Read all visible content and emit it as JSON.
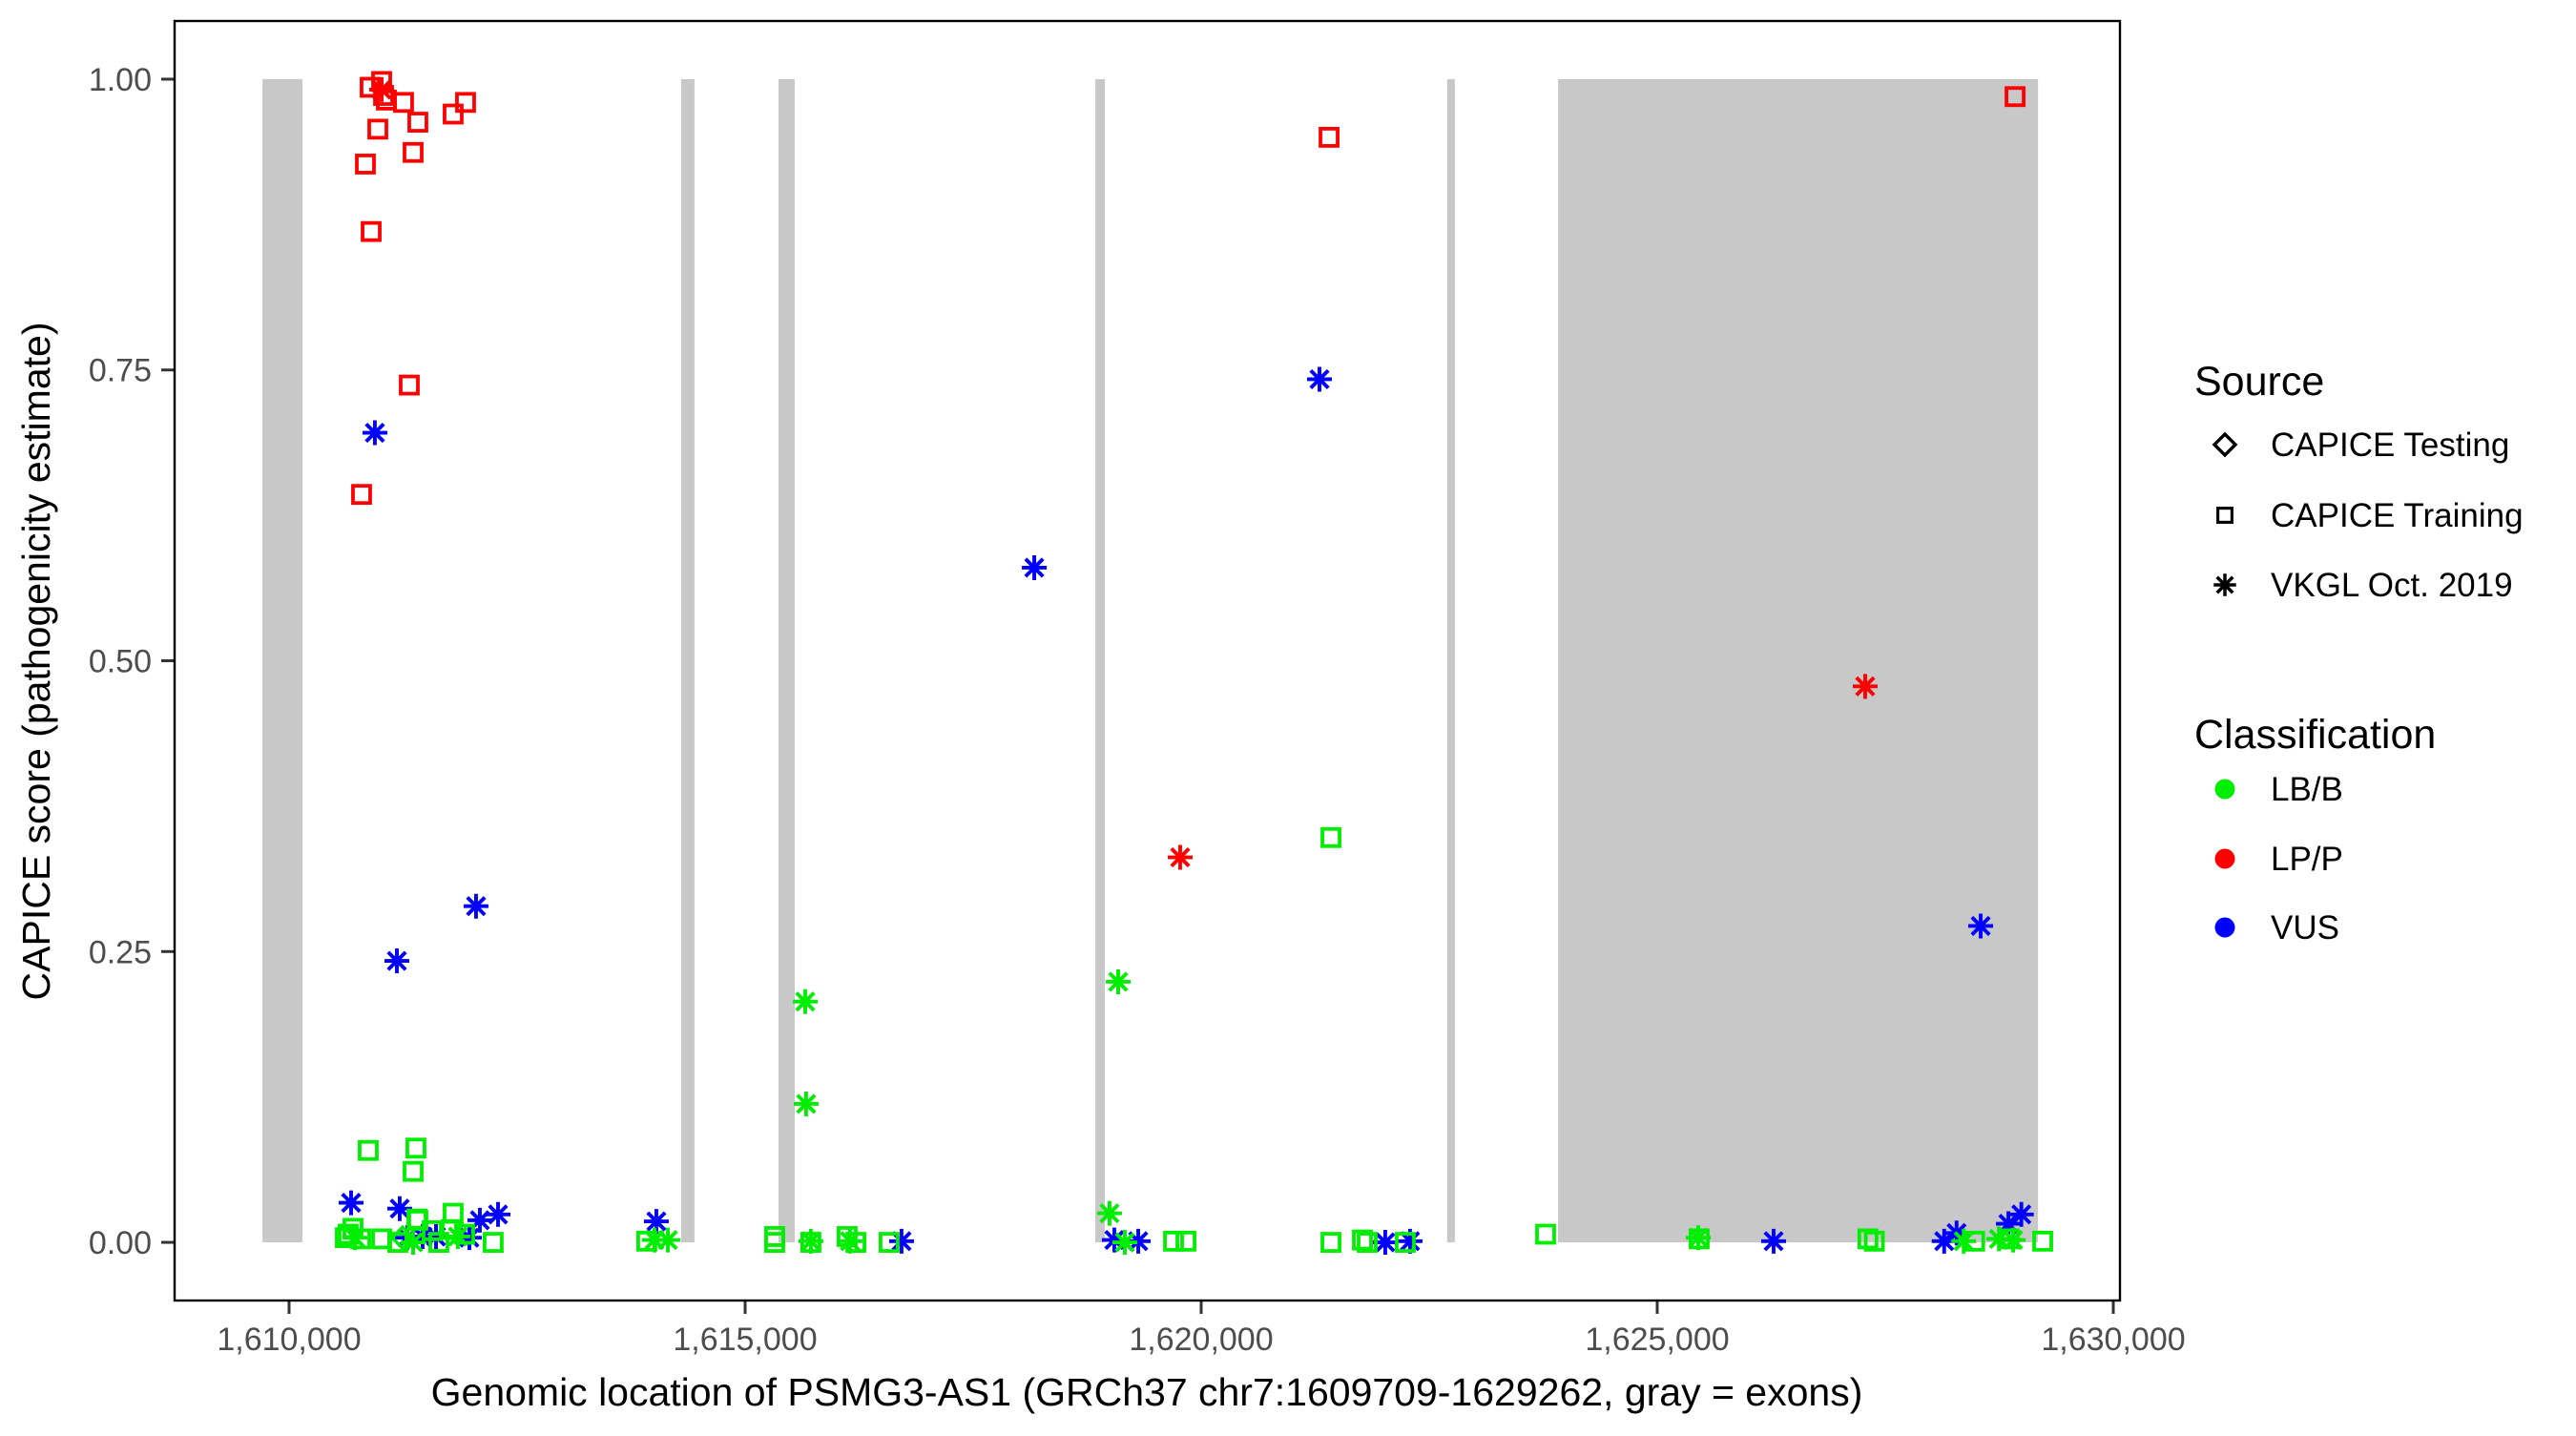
{
  "figure": {
    "background": "#ffffff"
  },
  "legend": {
    "source": {
      "title": "Source",
      "items": [
        {
          "label": "CAPICE Testing",
          "shape": "diamond"
        },
        {
          "label": "CAPICE Training",
          "shape": "square"
        },
        {
          "label": "VKGL Oct. 2019",
          "shape": "asterisk"
        }
      ]
    },
    "classification": {
      "title": "Classification",
      "items": [
        {
          "label": "LB/B",
          "color": "#00ee00"
        },
        {
          "label": "LP/P",
          "color": "#ff0000"
        },
        {
          "label": "VUS",
          "color": "#0000ff"
        }
      ]
    }
  },
  "chart_data": {
    "type": "scatter",
    "title": "",
    "xlabel": "Genomic location of PSMG3-AS1 (GRCh37 chr7:1609709-1629262, gray = exons)",
    "ylabel": "CAPICE score (pathogenicity estimate)",
    "xlim": [
      1608745,
      1630073
    ],
    "ylim": [
      -0.05,
      1.05
    ],
    "grid": false,
    "legend_position": "right",
    "x_ticks": [
      {
        "value": 1610000,
        "label": "1,610,000"
      },
      {
        "value": 1615000,
        "label": "1,615,000"
      },
      {
        "value": 1620000,
        "label": "1,620,000"
      },
      {
        "value": 1625000,
        "label": "1,625,000"
      },
      {
        "value": 1630000,
        "label": "1,630,000"
      }
    ],
    "y_ticks": [
      {
        "value": 0.0,
        "label": "0.00"
      },
      {
        "value": 0.25,
        "label": "0.25"
      },
      {
        "value": 0.5,
        "label": "0.50"
      },
      {
        "value": 0.75,
        "label": "0.75"
      },
      {
        "value": 1.0,
        "label": "1.00"
      }
    ],
    "exon_color": "#c8c8c8",
    "exons": [
      [
        1609709,
        1610146
      ],
      [
        1614299,
        1614445
      ],
      [
        1615366,
        1615544
      ],
      [
        1618838,
        1618943
      ],
      [
        1622697,
        1622781
      ],
      [
        1623912,
        1629175
      ]
    ],
    "class_colors": {
      "LB/B": "#00ee00",
      "LP/P": "#ff0000",
      "VUS": "#0000ff"
    },
    "points": [
      {
        "x": 1610889,
        "y": 0.993,
        "shape": "square",
        "cls": "LP/P"
      },
      {
        "x": 1611015,
        "y": 0.998,
        "shape": "square",
        "cls": "LP/P"
      },
      {
        "x": 1611036,
        "y": 0.986,
        "shape": "square",
        "cls": "LP/P"
      },
      {
        "x": 1611067,
        "y": 0.982,
        "shape": "square",
        "cls": "LP/P"
      },
      {
        "x": 1610973,
        "y": 0.957,
        "shape": "square",
        "cls": "LP/P"
      },
      {
        "x": 1611255,
        "y": 0.98,
        "shape": "square",
        "cls": "LP/P"
      },
      {
        "x": 1611412,
        "y": 0.963,
        "shape": "square",
        "cls": "LP/P"
      },
      {
        "x": 1611360,
        "y": 0.937,
        "shape": "square",
        "cls": "LP/P"
      },
      {
        "x": 1610837,
        "y": 0.927,
        "shape": "square",
        "cls": "LP/P"
      },
      {
        "x": 1611799,
        "y": 0.97,
        "shape": "square",
        "cls": "LP/P"
      },
      {
        "x": 1611935,
        "y": 0.98,
        "shape": "square",
        "cls": "LP/P"
      },
      {
        "x": 1610900,
        "y": 0.869,
        "shape": "square",
        "cls": "LP/P"
      },
      {
        "x": 1611318,
        "y": 0.737,
        "shape": "square",
        "cls": "LP/P"
      },
      {
        "x": 1610795,
        "y": 0.643,
        "shape": "square",
        "cls": "LP/P"
      },
      {
        "x": 1621402,
        "y": 0.95,
        "shape": "square",
        "cls": "LP/P"
      },
      {
        "x": 1628923,
        "y": 0.985,
        "shape": "square",
        "cls": "LP/P"
      },
      {
        "x": 1611015,
        "y": 0.991,
        "shape": "asterisk",
        "cls": "LP/P"
      },
      {
        "x": 1619770,
        "y": 0.331,
        "shape": "asterisk",
        "cls": "LP/P"
      },
      {
        "x": 1627280,
        "y": 0.478,
        "shape": "asterisk",
        "cls": "LP/P"
      },
      {
        "x": 1610941,
        "y": 0.696,
        "shape": "asterisk",
        "cls": "VUS"
      },
      {
        "x": 1612050,
        "y": 0.289,
        "shape": "asterisk",
        "cls": "VUS"
      },
      {
        "x": 1611182,
        "y": 0.242,
        "shape": "asterisk",
        "cls": "VUS"
      },
      {
        "x": 1618170,
        "y": 0.58,
        "shape": "asterisk",
        "cls": "VUS"
      },
      {
        "x": 1621297,
        "y": 0.742,
        "shape": "asterisk",
        "cls": "VUS"
      },
      {
        "x": 1628546,
        "y": 0.272,
        "shape": "asterisk",
        "cls": "VUS"
      },
      {
        "x": 1610680,
        "y": 0.034,
        "shape": "asterisk",
        "cls": "VUS"
      },
      {
        "x": 1611213,
        "y": 0.029,
        "shape": "asterisk",
        "cls": "VUS"
      },
      {
        "x": 1611297,
        "y": 0.004,
        "shape": "asterisk",
        "cls": "VUS"
      },
      {
        "x": 1611464,
        "y": 0.005,
        "shape": "asterisk",
        "cls": "VUS"
      },
      {
        "x": 1611611,
        "y": 0.005,
        "shape": "asterisk",
        "cls": "VUS"
      },
      {
        "x": 1611977,
        "y": 0.004,
        "shape": "asterisk",
        "cls": "VUS"
      },
      {
        "x": 1612092,
        "y": 0.019,
        "shape": "asterisk",
        "cls": "VUS"
      },
      {
        "x": 1612291,
        "y": 0.024,
        "shape": "asterisk",
        "cls": "VUS"
      },
      {
        "x": 1614027,
        "y": 0.018,
        "shape": "asterisk",
        "cls": "VUS"
      },
      {
        "x": 1619048,
        "y": 0.002,
        "shape": "asterisk",
        "cls": "VUS"
      },
      {
        "x": 1619310,
        "y": 0.001,
        "shape": "asterisk",
        "cls": "VUS"
      },
      {
        "x": 1616715,
        "y": 0.001,
        "shape": "asterisk",
        "cls": "VUS"
      },
      {
        "x": 1622018,
        "y": 0.0,
        "shape": "asterisk",
        "cls": "VUS"
      },
      {
        "x": 1622290,
        "y": 0.001,
        "shape": "asterisk",
        "cls": "VUS"
      },
      {
        "x": 1626276,
        "y": 0.001,
        "shape": "asterisk",
        "cls": "VUS"
      },
      {
        "x": 1628146,
        "y": 0.001,
        "shape": "asterisk",
        "cls": "VUS"
      },
      {
        "x": 1628282,
        "y": 0.008,
        "shape": "asterisk",
        "cls": "VUS"
      },
      {
        "x": 1628992,
        "y": 0.024,
        "shape": "asterisk",
        "cls": "VUS"
      },
      {
        "x": 1628850,
        "y": 0.016,
        "shape": "asterisk",
        "cls": "VUS"
      },
      {
        "x": 1610868,
        "y": 0.079,
        "shape": "square",
        "cls": "LB/B"
      },
      {
        "x": 1611391,
        "y": 0.081,
        "shape": "square",
        "cls": "LB/B"
      },
      {
        "x": 1611360,
        "y": 0.061,
        "shape": "square",
        "cls": "LB/B"
      },
      {
        "x": 1611412,
        "y": 0.019,
        "shape": "square",
        "cls": "LB/B"
      },
      {
        "x": 1610617,
        "y": 0.004,
        "shape": "square",
        "cls": "LB/B"
      },
      {
        "x": 1610701,
        "y": 0.012,
        "shape": "square",
        "cls": "LB/B"
      },
      {
        "x": 1610785,
        "y": 0.003,
        "shape": "square",
        "cls": "LB/B"
      },
      {
        "x": 1611015,
        "y": 0.003,
        "shape": "square",
        "cls": "LB/B"
      },
      {
        "x": 1611192,
        "y": 0.0,
        "shape": "square",
        "cls": "LB/B"
      },
      {
        "x": 1611402,
        "y": 0.02,
        "shape": "square",
        "cls": "LB/B"
      },
      {
        "x": 1611569,
        "y": 0.01,
        "shape": "square",
        "cls": "LB/B"
      },
      {
        "x": 1611642,
        "y": 0.0,
        "shape": "square",
        "cls": "LB/B"
      },
      {
        "x": 1611799,
        "y": 0.025,
        "shape": "square",
        "cls": "LB/B"
      },
      {
        "x": 1611778,
        "y": 0.011,
        "shape": "square",
        "cls": "LB/B"
      },
      {
        "x": 1611925,
        "y": 0.007,
        "shape": "square",
        "cls": "LB/B"
      },
      {
        "x": 1612238,
        "y": 0.0,
        "shape": "square",
        "cls": "LB/B"
      },
      {
        "x": 1610648,
        "y": 0.007,
        "shape": "square",
        "cls": "LB/B"
      },
      {
        "x": 1613922,
        "y": 0.001,
        "shape": "square",
        "cls": "LB/B"
      },
      {
        "x": 1615324,
        "y": 0.005,
        "shape": "square",
        "cls": "LB/B"
      },
      {
        "x": 1615324,
        "y": 0.0,
        "shape": "square",
        "cls": "LB/B"
      },
      {
        "x": 1615721,
        "y": 0.0,
        "shape": "square",
        "cls": "LB/B"
      },
      {
        "x": 1616119,
        "y": 0.005,
        "shape": "square",
        "cls": "LB/B"
      },
      {
        "x": 1616214,
        "y": 0.0,
        "shape": "square",
        "cls": "LB/B"
      },
      {
        "x": 1616579,
        "y": 0.0,
        "shape": "square",
        "cls": "LB/B"
      },
      {
        "x": 1619697,
        "y": 0.001,
        "shape": "square",
        "cls": "LB/B"
      },
      {
        "x": 1619833,
        "y": 0.001,
        "shape": "square",
        "cls": "LB/B"
      },
      {
        "x": 1621423,
        "y": 0.348,
        "shape": "square",
        "cls": "LB/B"
      },
      {
        "x": 1621423,
        "y": 0.0,
        "shape": "square",
        "cls": "LB/B"
      },
      {
        "x": 1621768,
        "y": 0.002,
        "shape": "square",
        "cls": "LB/B"
      },
      {
        "x": 1621820,
        "y": 0.0,
        "shape": "square",
        "cls": "LB/B"
      },
      {
        "x": 1622238,
        "y": 0.0,
        "shape": "square",
        "cls": "LB/B"
      },
      {
        "x": 1623776,
        "y": 0.007,
        "shape": "square",
        "cls": "LB/B"
      },
      {
        "x": 1625460,
        "y": 0.003,
        "shape": "square",
        "cls": "LB/B"
      },
      {
        "x": 1627310,
        "y": 0.003,
        "shape": "square",
        "cls": "LB/B"
      },
      {
        "x": 1627380,
        "y": 0.001,
        "shape": "square",
        "cls": "LB/B"
      },
      {
        "x": 1628480,
        "y": 0.001,
        "shape": "square",
        "cls": "LB/B"
      },
      {
        "x": 1628857,
        "y": 0.003,
        "shape": "square",
        "cls": "LB/B"
      },
      {
        "x": 1629226,
        "y": 0.001,
        "shape": "square",
        "cls": "LB/B"
      },
      {
        "x": 1615659,
        "y": 0.207,
        "shape": "asterisk",
        "cls": "LB/B"
      },
      {
        "x": 1615669,
        "y": 0.119,
        "shape": "asterisk",
        "cls": "LB/B"
      },
      {
        "x": 1619090,
        "y": 0.224,
        "shape": "asterisk",
        "cls": "LB/B"
      },
      {
        "x": 1618995,
        "y": 0.025,
        "shape": "asterisk",
        "cls": "LB/B"
      },
      {
        "x": 1619163,
        "y": 0.0,
        "shape": "asterisk",
        "cls": "LB/B"
      },
      {
        "x": 1610722,
        "y": 0.004,
        "shape": "asterisk",
        "cls": "LB/B"
      },
      {
        "x": 1611360,
        "y": 0.0,
        "shape": "asterisk",
        "cls": "LB/B"
      },
      {
        "x": 1611851,
        "y": 0.005,
        "shape": "asterisk",
        "cls": "LB/B"
      },
      {
        "x": 1615721,
        "y": 0.001,
        "shape": "asterisk",
        "cls": "LB/B"
      },
      {
        "x": 1616150,
        "y": 0.001,
        "shape": "asterisk",
        "cls": "LB/B"
      },
      {
        "x": 1614006,
        "y": 0.002,
        "shape": "asterisk",
        "cls": "LB/B"
      },
      {
        "x": 1614153,
        "y": 0.002,
        "shape": "asterisk",
        "cls": "LB/B"
      },
      {
        "x": 1625450,
        "y": 0.004,
        "shape": "asterisk",
        "cls": "LB/B"
      },
      {
        "x": 1628360,
        "y": 0.001,
        "shape": "asterisk",
        "cls": "LB/B"
      },
      {
        "x": 1628746,
        "y": 0.003,
        "shape": "asterisk",
        "cls": "LB/B"
      },
      {
        "x": 1628902,
        "y": 0.002,
        "shape": "asterisk",
        "cls": "LB/B"
      },
      {
        "x": 1611245,
        "y": 0.004,
        "shape": "diamond",
        "cls": "LB/B"
      }
    ]
  }
}
